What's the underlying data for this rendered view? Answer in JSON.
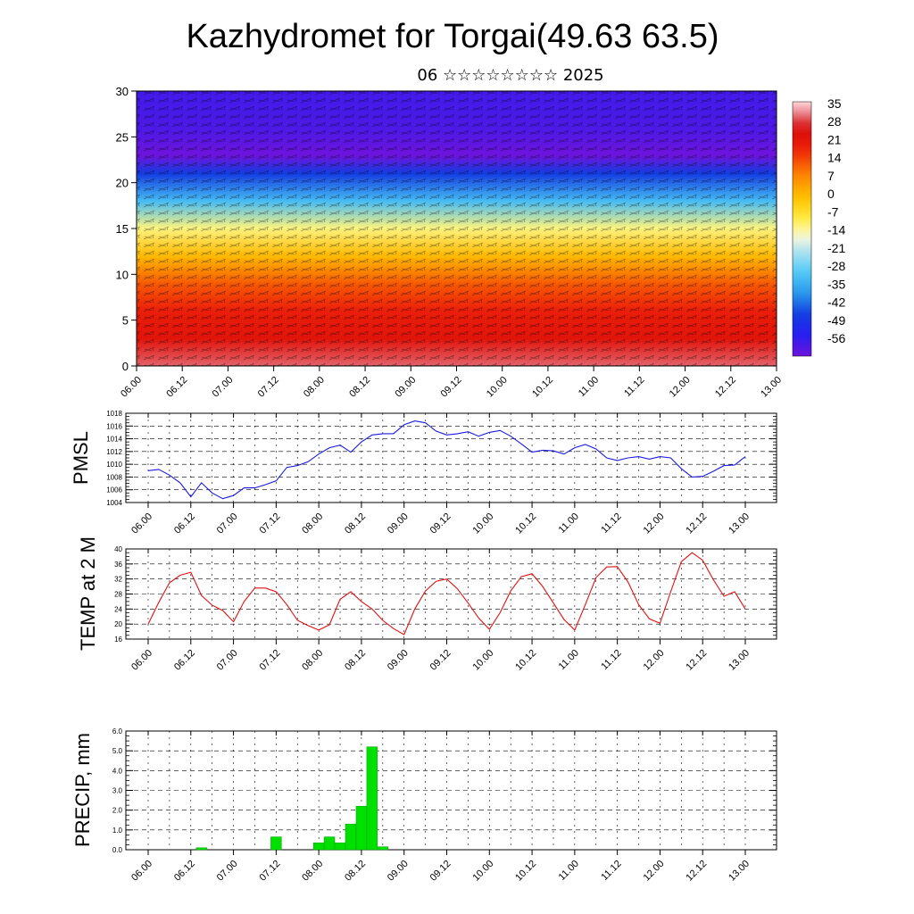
{
  "header": {
    "title": "Kazhydromet for Torgai(49.63 63.5)",
    "subtitle": "06 ☆☆☆☆☆☆☆☆ 2025"
  },
  "time_labels": [
    "06.00",
    "06.12",
    "07.00",
    "07.12",
    "08.00",
    "08.12",
    "09.00",
    "09.12",
    "10.00",
    "10.12",
    "11.00",
    "11.12",
    "12.00",
    "12.12",
    "13.00"
  ],
  "colors": {
    "pmsl_line": "#1a1ae0",
    "temp_line": "#e01010",
    "precip_bar": "#00e000",
    "grid": "#000000"
  },
  "chart_data": [
    {
      "type": "heatmap",
      "id": "vertical-section",
      "ylim": [
        0,
        30
      ],
      "yticks": [
        0,
        5,
        10,
        15,
        20,
        25,
        30
      ],
      "colorbar": {
        "labels": [
          "35",
          "28",
          "21",
          "14",
          "7",
          "0",
          "-7",
          "-14",
          "-21",
          "-28",
          "-35",
          "-42",
          "-49",
          "-56"
        ],
        "range": [
          -60,
          38
        ]
      },
      "profile": [
        {
          "height": 0,
          "value": 32
        },
        {
          "height": 3,
          "value": 24
        },
        {
          "height": 6,
          "value": 20
        },
        {
          "height": 9,
          "value": 14
        },
        {
          "height": 12,
          "value": 2
        },
        {
          "height": 15,
          "value": -10
        },
        {
          "height": 18,
          "value": -30
        },
        {
          "height": 21,
          "value": -44
        },
        {
          "height": 23,
          "value": -60
        },
        {
          "height": 26,
          "value": -56
        },
        {
          "height": 30,
          "value": -55
        }
      ]
    },
    {
      "type": "line",
      "id": "pmsl",
      "ylabel": "PMSL",
      "ylim": [
        1004,
        1018
      ],
      "yticks": [
        1004,
        1006,
        1008,
        1010,
        1012,
        1014,
        1016,
        1018
      ],
      "x": [
        0,
        3,
        6,
        9,
        12,
        15,
        18,
        21,
        24,
        27,
        30,
        33,
        36,
        39,
        42,
        45,
        48,
        51,
        54,
        57,
        60,
        63,
        66,
        69,
        72,
        75,
        78,
        81,
        84,
        87,
        90,
        93,
        96,
        99,
        102,
        105,
        108,
        111,
        114,
        117,
        120,
        123,
        126,
        129,
        132,
        135,
        138,
        141,
        144,
        147,
        150,
        153,
        156,
        159,
        162,
        165,
        168
      ],
      "values": [
        1009.0,
        1009.2,
        1008.3,
        1007.1,
        1004.9,
        1007.1,
        1005.5,
        1004.6,
        1005.1,
        1006.3,
        1006.3,
        1006.8,
        1007.4,
        1009.5,
        1009.8,
        1010.4,
        1011.6,
        1012.6,
        1013.0,
        1011.9,
        1013.5,
        1014.6,
        1014.8,
        1014.8,
        1016.2,
        1016.8,
        1016.5,
        1015.2,
        1014.6,
        1014.8,
        1015.1,
        1014.4,
        1015.0,
        1015.3,
        1014.4,
        1013.2,
        1011.9,
        1012.2,
        1012.1,
        1011.6,
        1012.6,
        1013.1,
        1012.4,
        1011.0,
        1010.6,
        1011.0,
        1011.2,
        1010.8,
        1011.2,
        1011.0,
        1009.3,
        1008.0,
        1008.1,
        1008.9,
        1009.8,
        1009.9,
        1011.2
      ]
    },
    {
      "type": "line",
      "id": "temp",
      "ylabel": "TEMP at 2 M",
      "ylim": [
        16,
        40
      ],
      "yticks": [
        16,
        20,
        24,
        28,
        32,
        36,
        40
      ],
      "x": [
        0,
        3,
        6,
        9,
        12,
        15,
        18,
        21,
        24,
        27,
        30,
        33,
        36,
        39,
        42,
        45,
        48,
        51,
        54,
        57,
        60,
        63,
        66,
        69,
        72,
        75,
        78,
        81,
        84,
        87,
        90,
        93,
        96,
        99,
        102,
        105,
        108,
        111,
        114,
        117,
        120,
        123,
        126,
        129,
        132,
        135,
        138,
        141,
        144,
        147,
        150,
        153,
        156,
        159,
        162,
        165,
        168
      ],
      "values": [
        20.0,
        25.8,
        31.0,
        33.0,
        33.8,
        27.6,
        25.0,
        23.6,
        20.6,
        26.0,
        29.6,
        29.6,
        28.6,
        25.2,
        21.0,
        19.6,
        18.4,
        19.8,
        26.6,
        28.6,
        26.0,
        24.0,
        21.0,
        18.8,
        17.2,
        24.0,
        28.8,
        31.4,
        32.0,
        29.4,
        25.6,
        21.6,
        18.6,
        23.0,
        28.8,
        32.6,
        33.4,
        30.0,
        25.6,
        21.2,
        18.4,
        25.2,
        32.4,
        35.2,
        35.3,
        31.2,
        25.2,
        21.4,
        20.2,
        28.6,
        36.6,
        39.0,
        37.0,
        31.8,
        27.4,
        28.6,
        24.0
      ]
    },
    {
      "type": "bar",
      "id": "precip",
      "ylabel": "PRECIP, mm",
      "ylim": [
        0,
        6
      ],
      "yticks": [
        "0.0",
        "1.0",
        "2.0",
        "3.0",
        "4.0",
        "5.0",
        "6.0"
      ],
      "x": [
        15,
        36,
        48,
        51,
        54,
        57,
        60,
        63,
        66
      ],
      "values": [
        0.1,
        0.65,
        0.35,
        0.65,
        0.35,
        1.3,
        2.2,
        5.2,
        0.15
      ]
    }
  ]
}
